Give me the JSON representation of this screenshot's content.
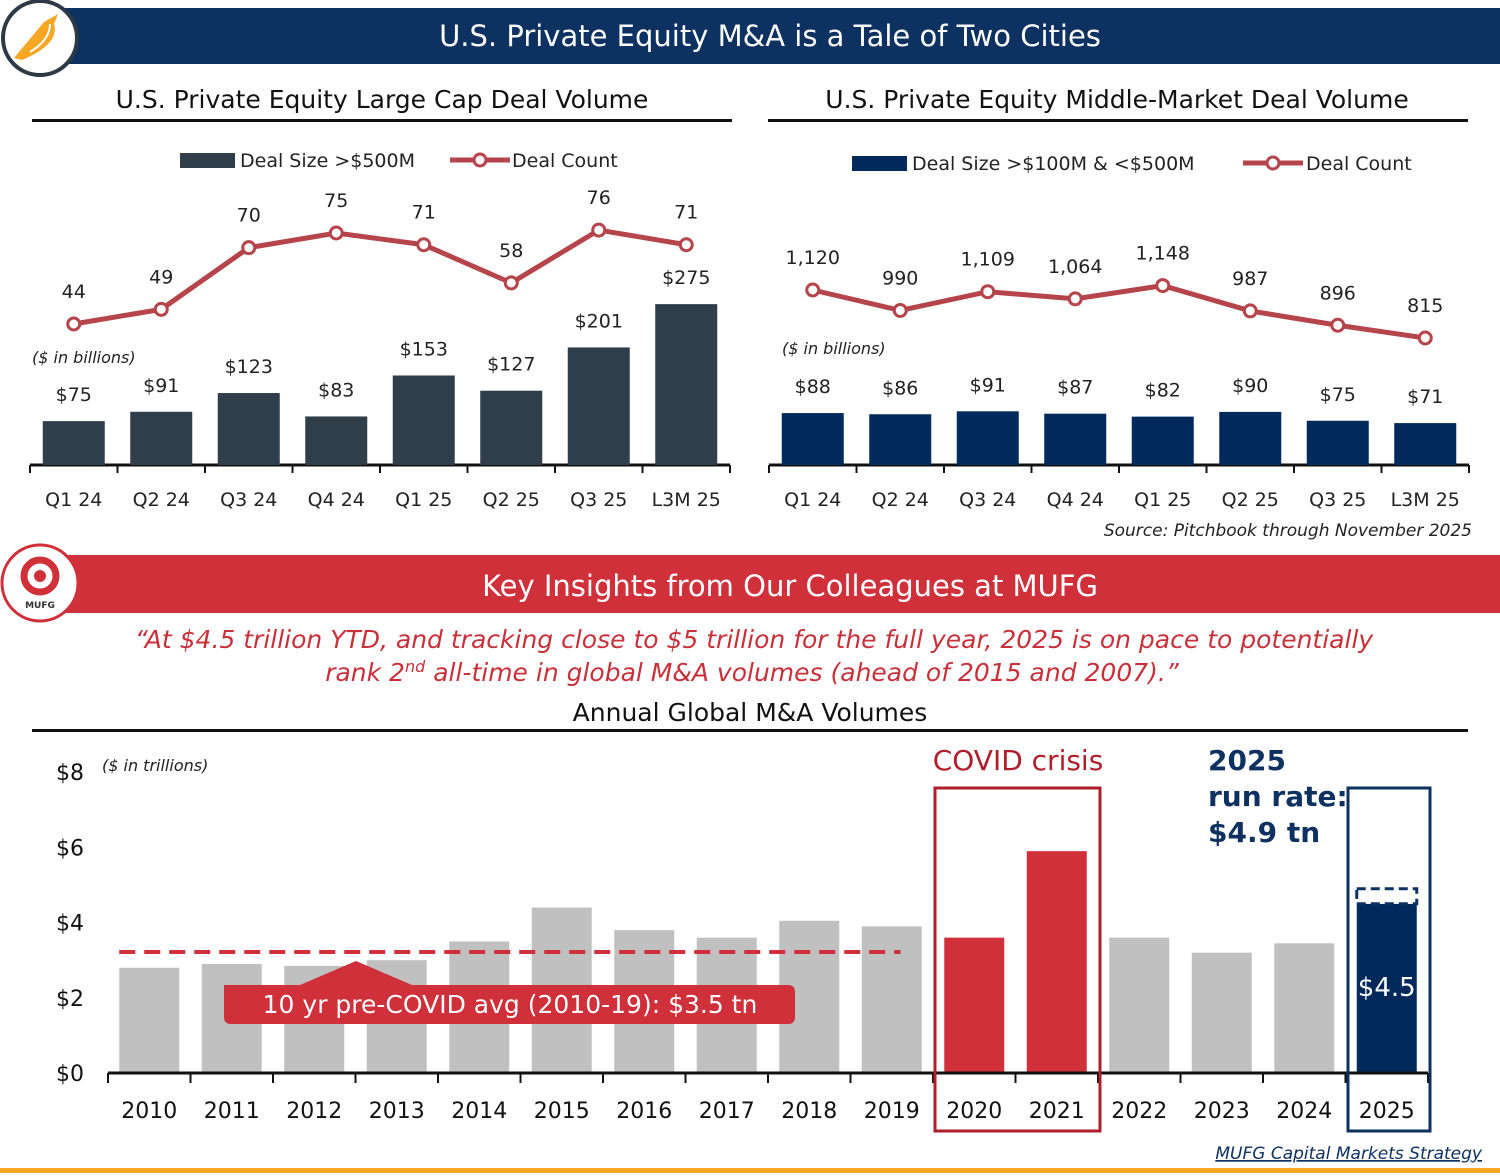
{
  "header": {
    "title": "U.S. Private Equity M&A is a Tale of Two Cities"
  },
  "colors": {
    "navy": "#0d3160",
    "slate": "#2f3e48",
    "mm_bar": "#002a5c",
    "line": "#b5454a",
    "red": "#d0303a",
    "grey": "#c0c0c0",
    "gold": "#f5a623"
  },
  "chart_data": [
    {
      "type": "bar+line",
      "title": "U.S. Private Equity Large Cap Deal Volume",
      "unit_note": "($ in billions)",
      "categories": [
        "Q1 24",
        "Q2 24",
        "Q3 24",
        "Q4 24",
        "Q1 25",
        "Q2 25",
        "Q3 25",
        "L3M 25"
      ],
      "series": [
        {
          "name": "Deal Size >$500M",
          "kind": "bar",
          "values": [
            75,
            91,
            123,
            83,
            153,
            127,
            201,
            275
          ]
        },
        {
          "name": "Deal Count",
          "kind": "line",
          "values": [
            44,
            49,
            70,
            75,
            71,
            58,
            76,
            71
          ]
        }
      ]
    },
    {
      "type": "bar+line",
      "title": "U.S. Private Equity Middle-Market Deal Volume",
      "unit_note": "($ in billions)",
      "categories": [
        "Q1 24",
        "Q2 24",
        "Q3 24",
        "Q4 24",
        "Q1 25",
        "Q2 25",
        "Q3 25",
        "L3M 25"
      ],
      "series": [
        {
          "name": "Deal Size >$100M & <$500M",
          "kind": "bar",
          "values": [
            88,
            86,
            91,
            87,
            82,
            90,
            75,
            71
          ]
        },
        {
          "name": "Deal Count",
          "kind": "line",
          "values": [
            1120,
            990,
            1109,
            1064,
            1148,
            987,
            896,
            815
          ]
        }
      ]
    },
    {
      "type": "bar",
      "title": "Annual Global M&A Volumes",
      "unit_note": "($ in trillions)",
      "categories": [
        "2010",
        "2011",
        "2012",
        "2013",
        "2014",
        "2015",
        "2016",
        "2017",
        "2018",
        "2019",
        "2020",
        "2021",
        "2022",
        "2023",
        "2024",
        "2025"
      ],
      "values": [
        2.8,
        2.9,
        2.85,
        3.0,
        3.5,
        4.4,
        3.8,
        3.6,
        4.05,
        3.9,
        3.6,
        5.9,
        3.6,
        3.2,
        3.45,
        4.5
      ],
      "highlight": {
        "covid": [
          "2020",
          "2021"
        ],
        "current": "2025"
      },
      "yticks": [
        "$0",
        "$2",
        "$4",
        "$6",
        "$8"
      ],
      "ylim": [
        0,
        8
      ],
      "average": {
        "label": "10 yr pre-COVID avg (2010-19): $3.5 tn",
        "value": 3.5
      },
      "run_rate": 4.9,
      "bar_label_2025": "$4.5",
      "annotations": {
        "covid": "COVID crisis",
        "run_rate": [
          "2025",
          "run rate:",
          "$4.9 tn"
        ]
      }
    }
  ],
  "source": "Source: Pitchbook through November 2025",
  "mufg_band": {
    "title": "Key Insights from Our Colleagues at MUFG",
    "logo_text": "MUFG"
  },
  "quote": {
    "line1": "“At $4.5 trillion YTD, and tracking close to $5 trillion for the full year, 2025 is on pace to potentially",
    "line2_pre": "rank 2",
    "line2_sup": "nd",
    "line2_post": " all-time in global M&A volumes (ahead of 2015 and 2007).”"
  },
  "footer": {
    "link": "MUFG Capital Markets Strategy"
  }
}
